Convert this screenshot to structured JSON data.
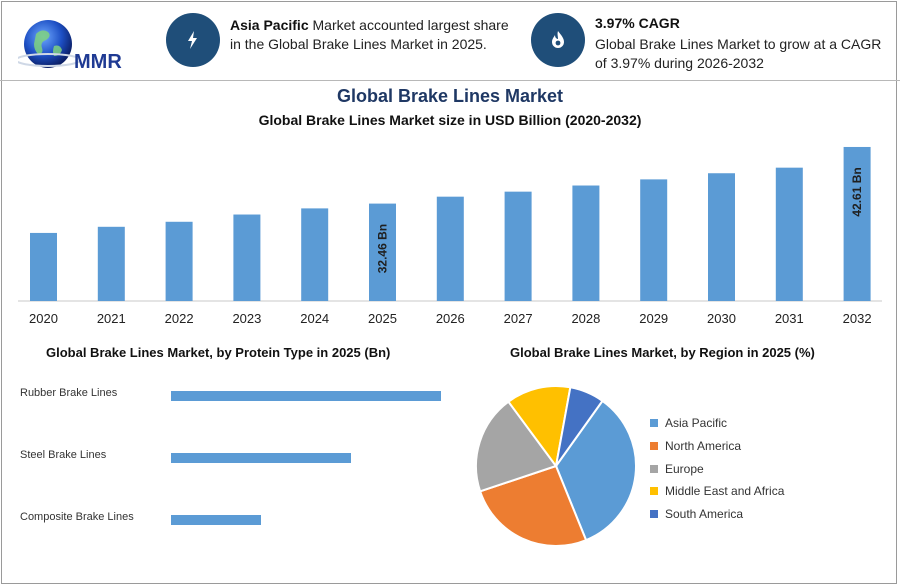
{
  "logo": {
    "text": "MMR"
  },
  "header": {
    "info1": {
      "bold": "Asia Pacific",
      "text": " Market accounted largest share in the Global Brake Lines Market in 2025."
    },
    "info2": {
      "bold": "3.97% CAGR",
      "text": "Global Brake Lines Market to grow at a CAGR of 3.97% during 2026-2032"
    }
  },
  "main_title": "Global Brake Lines Market",
  "chart_data": [
    {
      "type": "bar",
      "title": "Global Brake Lines Market size in USD Billion (2020-2032)",
      "categories": [
        "2020",
        "2021",
        "2022",
        "2023",
        "2024",
        "2025",
        "2026",
        "2027",
        "2028",
        "2029",
        "2030",
        "2031",
        "2032"
      ],
      "values": [
        27.2,
        28.3,
        29.2,
        30.5,
        31.6,
        32.46,
        33.7,
        34.6,
        35.7,
        36.8,
        37.9,
        38.9,
        42.61
      ],
      "data_labels": [
        {
          "index": 5,
          "text": "32.46 Bn"
        },
        {
          "index": 12,
          "text": "42.61 Bn"
        }
      ],
      "ylim": [
        15,
        43.5
      ],
      "color": "#5b9bd5"
    },
    {
      "type": "bar",
      "orientation": "horizontal",
      "title": "Global Brake Lines Market, by Protein Type in 2025 (Bn)",
      "categories": [
        "Rubber Brake Lines",
        "Steel Brake Lines",
        "Composite Brake Lines"
      ],
      "values": [
        15,
        10,
        5
      ],
      "xlim": [
        0,
        15
      ],
      "color": "#5b9bd5"
    },
    {
      "type": "pie",
      "title": "Global Brake Lines Market, by Region in 2025 (%)",
      "labels": [
        "Asia Pacific",
        "North America",
        "Europe",
        "Middle East and Africa",
        "South America"
      ],
      "values": [
        34,
        26,
        20,
        13,
        7
      ],
      "colors": [
        "#5b9bd5",
        "#ed7d31",
        "#a5a5a5",
        "#ffc000",
        "#4472c4"
      ],
      "legend_position": "right"
    }
  ]
}
